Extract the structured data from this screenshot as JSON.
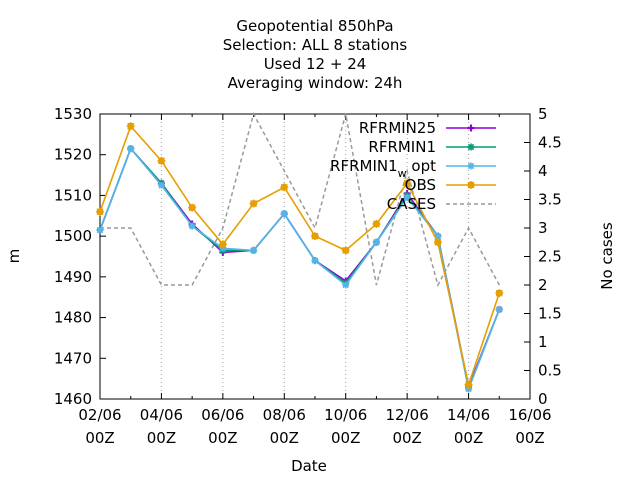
{
  "chart_data": {
    "type": "line",
    "title_lines": [
      "Geopotential 850hPa",
      "Selection: ALL      8 stations",
      "Used  12 + 24",
      "Averaging window: 24h"
    ],
    "xlabel": "Date",
    "ylabel": "m",
    "y2label": "No cases",
    "x_ticks": [
      {
        "day": 2,
        "line1": "02/06",
        "line2": "00Z"
      },
      {
        "day": 4,
        "line1": "04/06",
        "line2": "00Z"
      },
      {
        "day": 6,
        "line1": "06/06",
        "line2": "00Z"
      },
      {
        "day": 8,
        "line1": "08/06",
        "line2": "00Z"
      },
      {
        "day": 10,
        "line1": "10/06",
        "line2": "00Z"
      },
      {
        "day": 12,
        "line1": "12/06",
        "line2": "00Z"
      },
      {
        "day": 14,
        "line1": "14/06",
        "line2": "00Z"
      },
      {
        "day": 16,
        "line1": "16/06",
        "line2": "00Z"
      }
    ],
    "xlim": [
      2,
      16
    ],
    "ylim": [
      1460,
      1530
    ],
    "y_ticks": [
      1460,
      1470,
      1480,
      1490,
      1500,
      1510,
      1520,
      1530
    ],
    "y2lim": [
      0,
      5
    ],
    "y2_ticks": [
      "0",
      "0.5",
      "1",
      "1.5",
      "2",
      "2.5",
      "3",
      "3.5",
      "4",
      "4.5",
      "5"
    ],
    "grid": true,
    "legend_position": "top-right",
    "series": [
      {
        "name": "RFRMIN25",
        "color": "#9400d3",
        "marker": "plus",
        "axis": "y",
        "x": [
          2,
          3,
          4,
          5,
          6,
          7,
          8,
          9,
          10,
          11,
          12,
          13,
          14,
          15
        ],
        "y": [
          1501.5,
          1521.5,
          1513.0,
          1503.0,
          1496.0,
          1496.5,
          1505.5,
          1494.0,
          1489.0,
          1498.5,
          1510.5,
          1500.0,
          1463.0,
          1482.0
        ]
      },
      {
        "name": "RFRMIN1",
        "color": "#009e73",
        "marker": "star",
        "axis": "y",
        "x": [
          2,
          3,
          4,
          5,
          6,
          7,
          8,
          9,
          10,
          11,
          12,
          13,
          14,
          15
        ],
        "y": [
          1501.5,
          1521.5,
          1513.0,
          1502.5,
          1496.5,
          1496.5,
          1505.5,
          1494.0,
          1488.5,
          1498.5,
          1510.0,
          1500.0,
          1462.5,
          1482.0
        ]
      },
      {
        "name": "RFRMIN1_w_opt",
        "label_main": "RFRMIN1",
        "label_sub": "w",
        "label_tail": "opt",
        "color": "#56b4e9",
        "marker": "star",
        "axis": "y",
        "x": [
          2,
          3,
          4,
          5,
          6,
          7,
          8,
          9,
          10,
          11,
          12,
          13,
          14,
          15
        ],
        "y": [
          1501.5,
          1521.5,
          1512.5,
          1502.5,
          1497.0,
          1496.5,
          1505.5,
          1494.0,
          1488.0,
          1498.5,
          1509.5,
          1500.0,
          1462.5,
          1482.0
        ]
      },
      {
        "name": "OBS",
        "color": "#e69f00",
        "marker": "square",
        "axis": "y",
        "x": [
          2,
          3,
          4,
          5,
          6,
          7,
          8,
          9,
          10,
          11,
          12,
          13,
          14,
          15
        ],
        "y": [
          1506.0,
          1527.0,
          1518.5,
          1507.0,
          1498.0,
          1508.0,
          1512.0,
          1500.0,
          1496.5,
          1503.0,
          1513.0,
          1498.5,
          1463.5,
          1486.0
        ]
      },
      {
        "name": "CASES",
        "color": "#999999",
        "style": "dashed",
        "axis": "y2",
        "x": [
          2,
          3,
          4,
          5,
          6,
          7,
          8,
          9,
          10,
          11,
          12,
          13,
          14,
          15
        ],
        "y": [
          3,
          3,
          2,
          2,
          3,
          5,
          4,
          3,
          5,
          2,
          4,
          2,
          3,
          2
        ]
      }
    ]
  }
}
